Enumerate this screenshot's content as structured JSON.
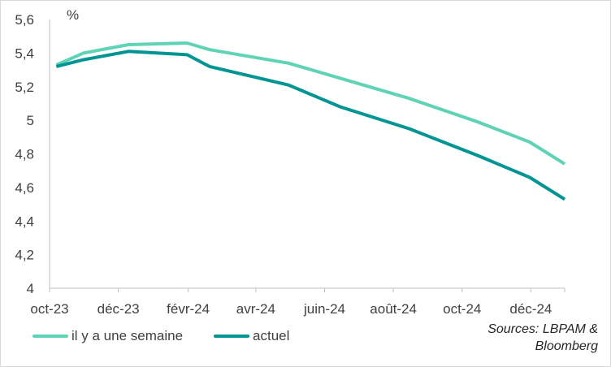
{
  "chart_data": {
    "type": "line",
    "title": "",
    "unit": "%",
    "xlabel": "",
    "ylabel": "",
    "x_range": [
      "2023-10-01",
      "2024-12-31"
    ],
    "ylim": [
      4,
      5.6
    ],
    "yticks": [
      "4",
      "4,2",
      "4,4",
      "4,6",
      "4,8",
      "5",
      "5,2",
      "5,4",
      "5,6"
    ],
    "xtick_labels": [
      "oct-23",
      "déc-23",
      "févr-24",
      "avr-24",
      "juin-24",
      "août-24",
      "oct-24",
      "déc-24"
    ],
    "grid": false,
    "legend_position": "bottom-left",
    "series": [
      {
        "name": "il y a une semaine",
        "color": "#5fd3b6",
        "points": [
          [
            "2023-10-07",
            5.33
          ],
          [
            "2023-10-31",
            5.4
          ],
          [
            "2023-12-10",
            5.45
          ],
          [
            "2024-01-31",
            5.46
          ],
          [
            "2024-02-20",
            5.42
          ],
          [
            "2024-04-30",
            5.34
          ],
          [
            "2024-06-15",
            5.25
          ],
          [
            "2024-08-15",
            5.13
          ],
          [
            "2024-10-15",
            4.99
          ],
          [
            "2024-11-30",
            4.87
          ],
          [
            "2024-12-31",
            4.74
          ]
        ]
      },
      {
        "name": "actuel",
        "color": "#009593",
        "points": [
          [
            "2023-10-07",
            5.32
          ],
          [
            "2023-10-31",
            5.36
          ],
          [
            "2023-12-10",
            5.41
          ],
          [
            "2024-01-31",
            5.39
          ],
          [
            "2024-02-20",
            5.32
          ],
          [
            "2024-04-30",
            5.21
          ],
          [
            "2024-06-15",
            5.08
          ],
          [
            "2024-08-15",
            4.95
          ],
          [
            "2024-10-15",
            4.79
          ],
          [
            "2024-11-30",
            4.66
          ],
          [
            "2024-12-31",
            4.53
          ]
        ]
      }
    ]
  },
  "sources": [
    "Sources: LBPAM &",
    "Bloomberg"
  ]
}
